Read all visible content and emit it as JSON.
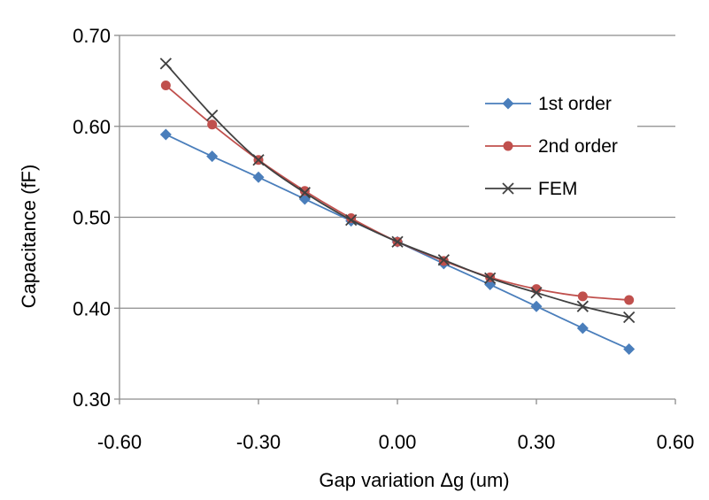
{
  "chart_data": {
    "type": "line",
    "title": "",
    "xlabel": "Gap variation Δg (um)",
    "ylabel": "Capacitance (fF)",
    "xlim": [
      -0.6,
      0.6
    ],
    "ylim": [
      0.3,
      0.7
    ],
    "x_ticks": [
      -0.6,
      -0.3,
      0.0,
      0.3,
      0.6
    ],
    "y_ticks": [
      0.3,
      0.4,
      0.5,
      0.6,
      0.7
    ],
    "x_tick_labels": [
      "-0.60",
      "-0.30",
      "0.00",
      "0.30",
      "0.60"
    ],
    "y_tick_labels": [
      "0.30",
      "0.40",
      "0.50",
      "0.60",
      "0.70"
    ],
    "grid": "horizontal",
    "legend_position": "top-right",
    "x": [
      -0.5,
      -0.4,
      -0.3,
      -0.2,
      -0.1,
      0.0,
      0.1,
      0.2,
      0.3,
      0.4,
      0.5
    ],
    "series": [
      {
        "name": "1st order",
        "color": "#4a7ebb",
        "marker": "diamond",
        "values": [
          0.591,
          0.567,
          0.544,
          0.52,
          0.496,
          0.473,
          0.449,
          0.426,
          0.402,
          0.378,
          0.355
        ]
      },
      {
        "name": "2nd order",
        "color": "#c0504d",
        "marker": "circle",
        "values": [
          0.645,
          0.602,
          0.563,
          0.529,
          0.499,
          0.473,
          0.452,
          0.434,
          0.421,
          0.413,
          0.409
        ]
      },
      {
        "name": "FEM",
        "color": "#404040",
        "marker": "x",
        "values": [
          0.669,
          0.612,
          0.563,
          0.527,
          0.497,
          0.473,
          0.453,
          0.433,
          0.417,
          0.402,
          0.39
        ]
      }
    ]
  }
}
